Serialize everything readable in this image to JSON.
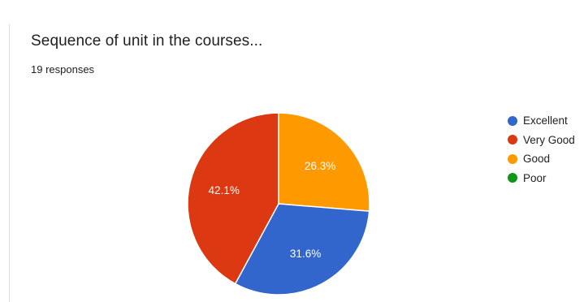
{
  "form": {
    "question_title": "Sequence of unit in the courses...",
    "response_count": "19 responses"
  },
  "chart_data": {
    "type": "pie",
    "title": "Sequence of unit in the courses...",
    "categories": [
      "Excellent",
      "Very Good",
      "Good",
      "Poor"
    ],
    "values": [
      31.6,
      42.1,
      26.3,
      0
    ],
    "labels": [
      "31.6%",
      "42.1%",
      "26.3%",
      ""
    ],
    "colors": [
      "#3366cc",
      "#dc3912",
      "#ff9900",
      "#109618"
    ],
    "legend_position": "right"
  }
}
